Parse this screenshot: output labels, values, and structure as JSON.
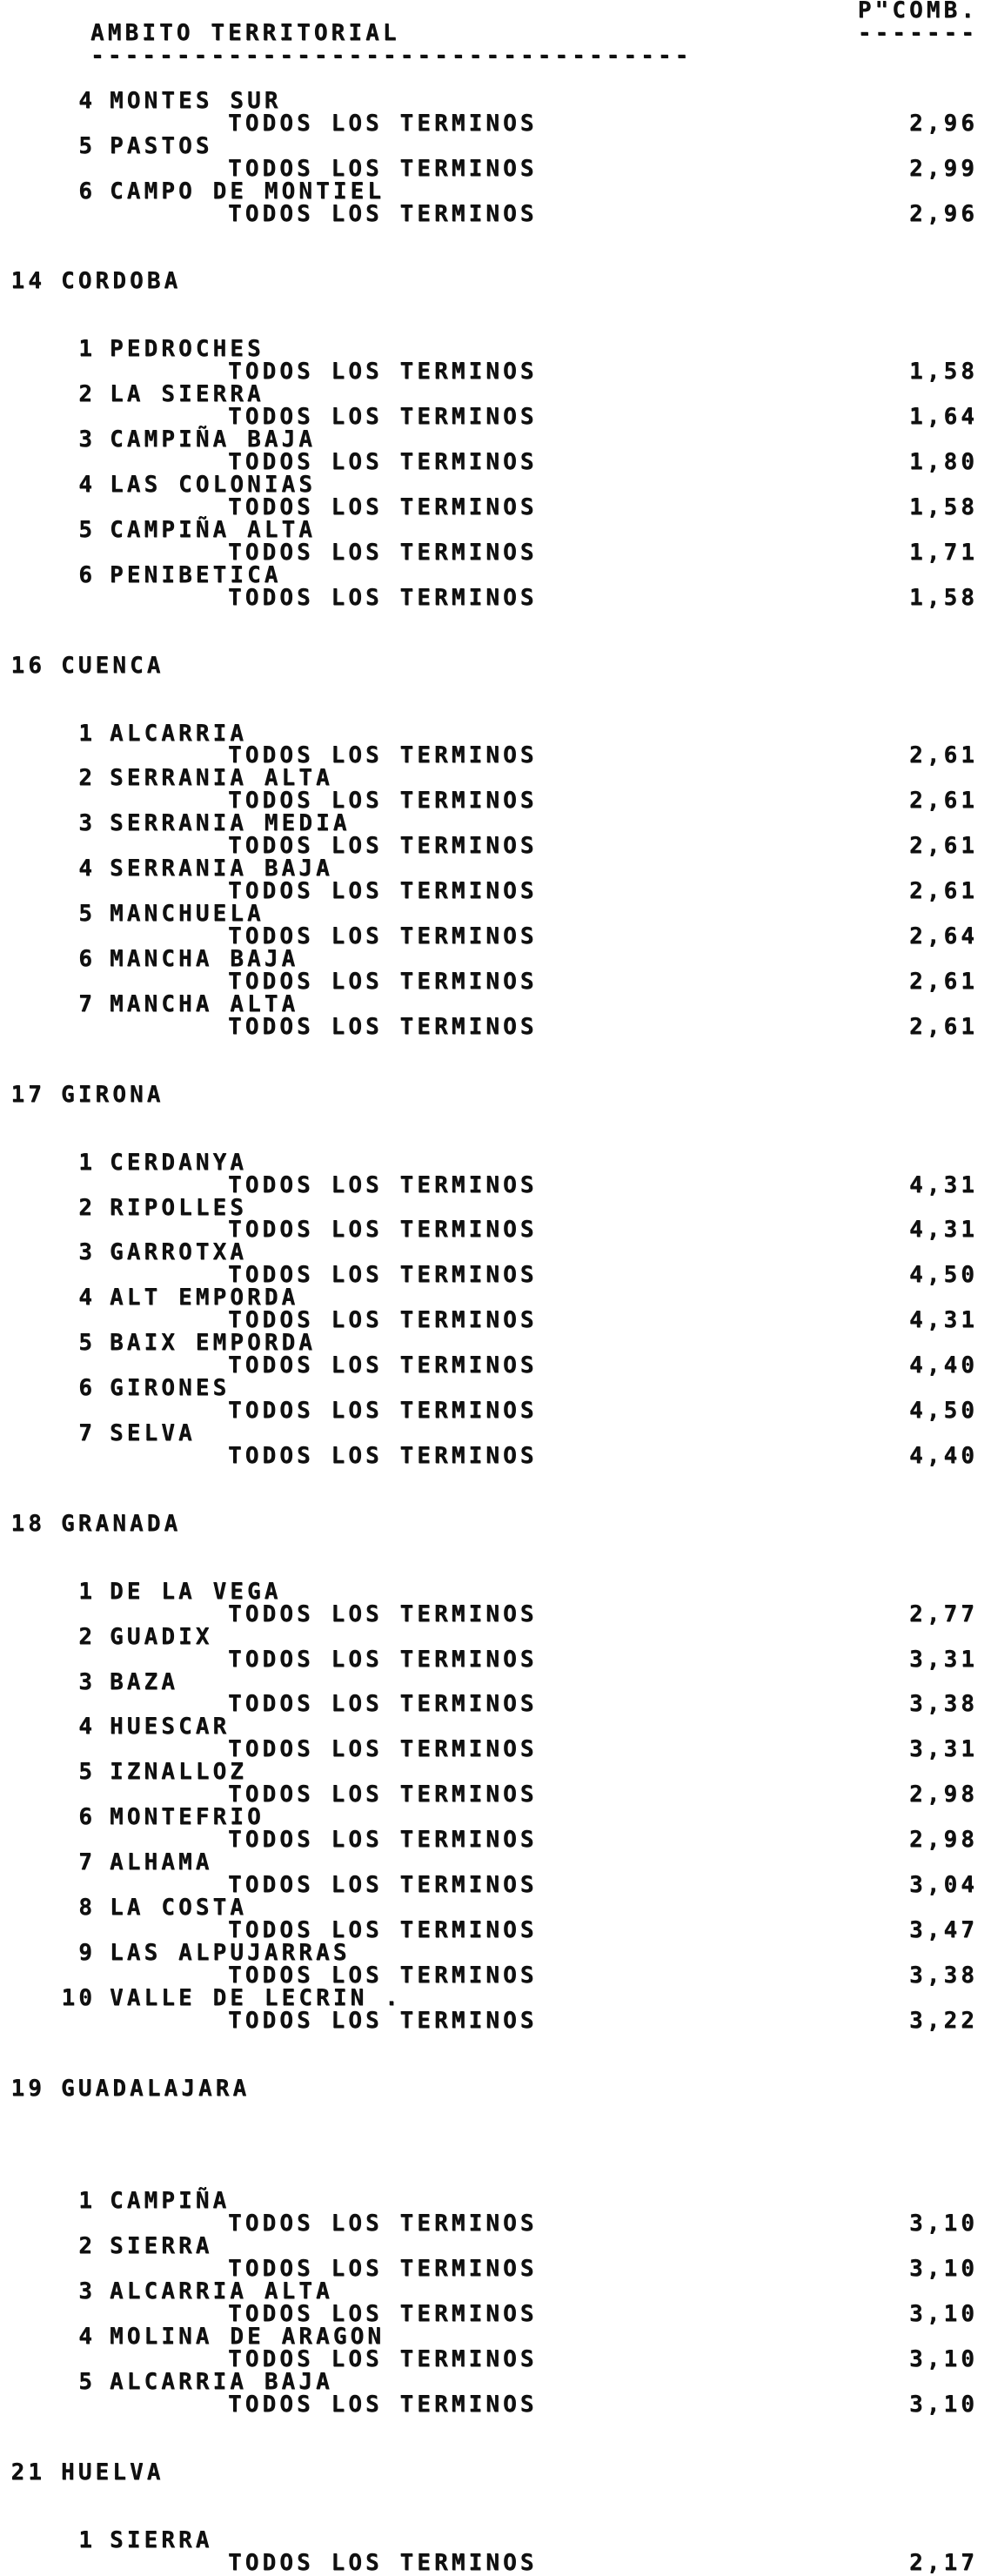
{
  "page": {
    "paper_color": "#ffffff",
    "ink_color": "#101010",
    "header": {
      "col1": "AMBITO TERRITORIAL",
      "col2": "P\"COMB.",
      "rule1": "-----------------------------------",
      "rule2": "-------"
    },
    "sections": [
      {
        "code": "",
        "province": "",
        "comarcas": [
          {
            "num": "4",
            "name": "MONTES SUR",
            "terms": "TODOS LOS TERMINOS",
            "value": "2,96"
          },
          {
            "num": "5",
            "name": "PASTOS",
            "terms": "TODOS LOS TERMINOS",
            "value": "2,99"
          },
          {
            "num": "6",
            "name": "CAMPO DE MONTIEL",
            "terms": "TODOS LOS TERMINOS",
            "value": "2,96"
          }
        ]
      },
      {
        "code": "14",
        "province": "CORDOBA",
        "comarcas": [
          {
            "num": "1",
            "name": "PEDROCHES",
            "terms": "TODOS LOS TERMINOS",
            "value": "1,58"
          },
          {
            "num": "2",
            "name": "LA SIERRA",
            "terms": "TODOS LOS TERMINOS",
            "value": "1,64"
          },
          {
            "num": "3",
            "name": "CAMPIÑA BAJA",
            "terms": "TODOS LOS TERMINOS",
            "value": "1,80"
          },
          {
            "num": "4",
            "name": "LAS COLONIAS",
            "terms": "TODOS LOS TERMINOS",
            "value": "1,58"
          },
          {
            "num": "5",
            "name": "CAMPIÑA ALTA",
            "terms": "TODOS LOS TERMINOS",
            "value": "1,71"
          },
          {
            "num": "6",
            "name": "PENIBETICA",
            "terms": "TODOS LOS TERMINOS",
            "value": "1,58"
          }
        ]
      },
      {
        "code": "16",
        "province": "CUENCA",
        "comarcas": [
          {
            "num": "1",
            "name": "ALCARRIA",
            "terms": "TODOS LOS TERMINOS",
            "value": "2,61"
          },
          {
            "num": "2",
            "name": "SERRANIA ALTA",
            "terms": "TODOS LOS TERMINOS",
            "value": "2,61"
          },
          {
            "num": "3",
            "name": "SERRANIA MEDIA",
            "terms": "TODOS LOS TERMINOS",
            "value": "2,61"
          },
          {
            "num": "4",
            "name": "SERRANIA BAJA",
            "terms": "TODOS LOS TERMINOS",
            "value": "2,61"
          },
          {
            "num": "5",
            "name": "MANCHUELA",
            "terms": "TODOS LOS TERMINOS",
            "value": "2,64"
          },
          {
            "num": "6",
            "name": "MANCHA BAJA",
            "terms": "TODOS LOS TERMINOS",
            "value": "2,61"
          },
          {
            "num": "7",
            "name": "MANCHA ALTA",
            "terms": "TODOS LOS TERMINOS",
            "value": "2,61"
          }
        ]
      },
      {
        "code": "17",
        "province": "GIRONA",
        "comarcas": [
          {
            "num": "1",
            "name": "CERDANYA",
            "terms": "TODOS LOS TERMINOS",
            "value": "4,31"
          },
          {
            "num": "2",
            "name": "RIPOLLES",
            "terms": "TODOS LOS TERMINOS",
            "value": "4,31"
          },
          {
            "num": "3",
            "name": "GARROTXA",
            "terms": "TODOS LOS TERMINOS",
            "value": "4,50"
          },
          {
            "num": "4",
            "name": "ALT EMPORDA",
            "terms": "TODOS LOS TERMINOS",
            "value": "4,31"
          },
          {
            "num": "5",
            "name": "BAIX EMPORDA",
            "terms": "TODOS LOS TERMINOS",
            "value": "4,40"
          },
          {
            "num": "6",
            "name": "GIRONES",
            "terms": "TODOS LOS TERMINOS",
            "value": "4,50"
          },
          {
            "num": "7",
            "name": "SELVA",
            "terms": "TODOS LOS TERMINOS",
            "value": "4,40"
          }
        ]
      },
      {
        "code": "18",
        "province": "GRANADA",
        "comarcas": [
          {
            "num": "1",
            "name": "DE LA VEGA",
            "terms": "TODOS LOS TERMINOS",
            "value": "2,77"
          },
          {
            "num": "2",
            "name": "GUADIX",
            "terms": "TODOS LOS TERMINOS",
            "value": "3,31"
          },
          {
            "num": "3",
            "name": "BAZA",
            "terms": "TODOS LOS TERMINOS",
            "value": "3,38"
          },
          {
            "num": "4",
            "name": "HUESCAR",
            "terms": "TODOS LOS TERMINOS",
            "value": "3,31"
          },
          {
            "num": "5",
            "name": "IZNALLOZ",
            "terms": "TODOS LOS TERMINOS",
            "value": "2,98"
          },
          {
            "num": "6",
            "name": "MONTEFRIO",
            "terms": "TODOS LOS TERMINOS",
            "value": "2,98"
          },
          {
            "num": "7",
            "name": "ALHAMA",
            "terms": "TODOS LOS TERMINOS",
            "value": "3,04"
          },
          {
            "num": "8",
            "name": "LA COSTA",
            "terms": "TODOS LOS TERMINOS",
            "value": "3,47"
          },
          {
            "num": "9",
            "name": "LAS ALPUJARRAS",
            "terms": "TODOS LOS TERMINOS",
            "value": "3,38"
          },
          {
            "num": "10",
            "name": "VALLE DE LECRIN .",
            "terms": "TODOS LOS TERMINOS",
            "value": "3,22"
          }
        ]
      },
      {
        "code": "19",
        "province": "GUADALAJARA",
        "gap_after_header": 4,
        "comarcas": [
          {
            "num": "1",
            "name": "CAMPIÑA",
            "terms": "TODOS LOS TERMINOS",
            "value": "3,10"
          },
          {
            "num": "2",
            "name": "SIERRA",
            "terms": "TODOS LOS TERMINOS",
            "value": "3,10"
          },
          {
            "num": "3",
            "name": "ALCARRIA ALTA",
            "terms": "TODOS LOS TERMINOS",
            "value": "3,10"
          },
          {
            "num": "4",
            "name": "MOLINA DE ARAGON",
            "terms": "TODOS LOS TERMINOS",
            "value": "3,10"
          },
          {
            "num": "5",
            "name": "ALCARRIA BAJA",
            "terms": "TODOS LOS TERMINOS",
            "value": "3,10"
          }
        ]
      },
      {
        "code": "21",
        "province": "HUELVA",
        "comarcas": [
          {
            "num": "1",
            "name": "SIERRA",
            "terms": "TODOS LOS TERMINOS",
            "value": "2,17"
          }
        ]
      }
    ]
  }
}
